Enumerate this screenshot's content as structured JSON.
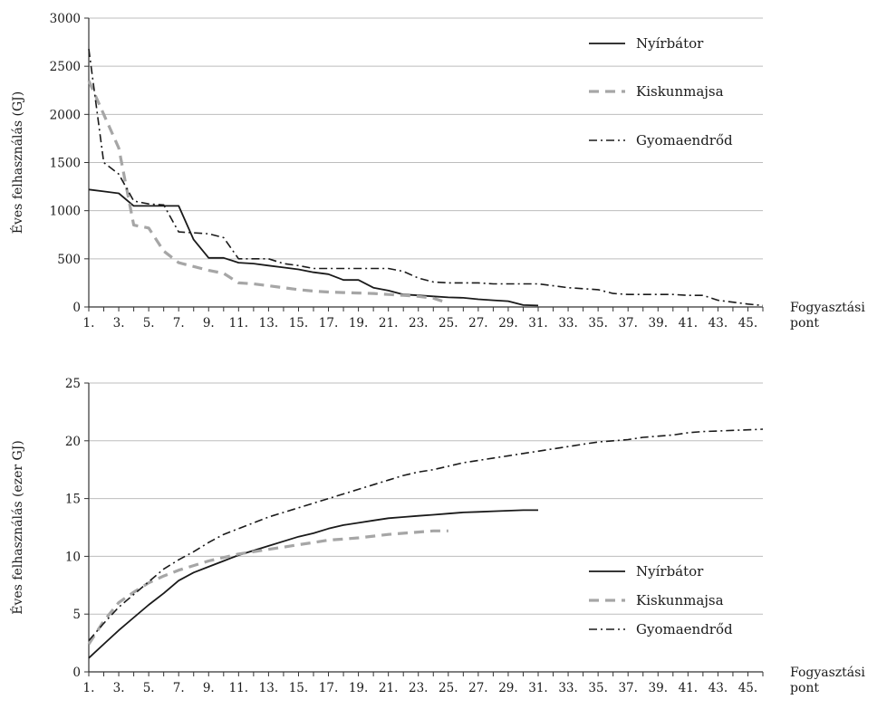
{
  "chart_data": [
    {
      "type": "line",
      "xlabel": [
        "Fogyasztási",
        "pont"
      ],
      "ylabel": "Éves felhasználás (GJ)",
      "ylim": [
        0,
        3000
      ],
      "yticks": [
        0,
        500,
        1000,
        1500,
        2000,
        2500,
        3000
      ],
      "xlim": [
        1,
        46
      ],
      "xticks": [
        "1.",
        "3.",
        "5.",
        "7.",
        "9.",
        "11.",
        "13.",
        "15.",
        "17.",
        "19.",
        "21.",
        "23.",
        "25.",
        "27.",
        "29.",
        "31.",
        "33.",
        "35.",
        "37.",
        "39.",
        "41.",
        "43.",
        "45."
      ],
      "grid": "horizontal",
      "legend": "top-right",
      "series": [
        {
          "name": "Nyírbátor",
          "style": "solid",
          "color": "#1a1a1a",
          "x": [
            1,
            2,
            3,
            4,
            5,
            6,
            7,
            8,
            9,
            10,
            11,
            12,
            13,
            14,
            15,
            16,
            17,
            18,
            19,
            20,
            21,
            22,
            23,
            24,
            25,
            26,
            27,
            28,
            29,
            30,
            31
          ],
          "values": [
            1220,
            1200,
            1180,
            1050,
            1050,
            1050,
            1050,
            700,
            510,
            510,
            460,
            450,
            430,
            410,
            390,
            360,
            340,
            280,
            280,
            200,
            170,
            130,
            120,
            110,
            100,
            95,
            80,
            70,
            60,
            20,
            15
          ]
        },
        {
          "name": "Kiskunmajsa",
          "style": "dashed",
          "color": "#a6a6a6",
          "x": [
            1,
            2,
            3,
            4,
            5,
            6,
            7,
            8,
            9,
            10,
            11,
            12,
            13,
            14,
            15,
            16,
            17,
            18,
            19,
            20,
            21,
            22,
            23,
            24,
            25
          ],
          "values": [
            2350,
            2000,
            1650,
            850,
            820,
            580,
            460,
            420,
            380,
            350,
            250,
            240,
            220,
            200,
            180,
            165,
            155,
            150,
            145,
            140,
            130,
            120,
            110,
            90,
            40
          ]
        },
        {
          "name": "Gyomaendrőd",
          "style": "dashdot",
          "color": "#1a1a1a",
          "x": [
            1,
            2,
            3,
            4,
            5,
            6,
            7,
            8,
            9,
            10,
            11,
            12,
            13,
            14,
            15,
            16,
            17,
            18,
            19,
            20,
            21,
            22,
            23,
            24,
            25,
            26,
            27,
            28,
            29,
            30,
            31,
            32,
            33,
            34,
            35,
            36,
            37,
            38,
            39,
            40,
            41,
            42,
            43,
            44,
            45,
            46
          ],
          "values": [
            2680,
            1500,
            1380,
            1100,
            1070,
            1060,
            780,
            770,
            760,
            720,
            500,
            500,
            500,
            450,
            430,
            400,
            400,
            400,
            400,
            400,
            400,
            370,
            300,
            260,
            250,
            250,
            250,
            240,
            240,
            240,
            240,
            220,
            200,
            190,
            180,
            140,
            130,
            130,
            130,
            130,
            120,
            120,
            70,
            50,
            30,
            15
          ]
        }
      ]
    },
    {
      "type": "line",
      "xlabel": [
        "Fogyasztási",
        "pont"
      ],
      "ylabel": "Éves felhasználás (ezer GJ)",
      "ylim": [
        0,
        25
      ],
      "yticks": [
        0,
        5,
        10,
        15,
        20,
        25
      ],
      "xlim": [
        1,
        46
      ],
      "xticks": [
        "1.",
        "3.",
        "5.",
        "7.",
        "9.",
        "11.",
        "13.",
        "15.",
        "17.",
        "19.",
        "21.",
        "23.",
        "25.",
        "27.",
        "29.",
        "31.",
        "33.",
        "35.",
        "37.",
        "39.",
        "41.",
        "43.",
        "45."
      ],
      "grid": "horizontal",
      "legend": "bottom-right",
      "series": [
        {
          "name": "Nyírbátor",
          "style": "solid",
          "color": "#1a1a1a",
          "x": [
            1,
            2,
            3,
            4,
            5,
            6,
            7,
            8,
            9,
            10,
            11,
            12,
            13,
            14,
            15,
            16,
            17,
            18,
            19,
            20,
            21,
            22,
            23,
            24,
            25,
            26,
            27,
            28,
            29,
            30,
            31
          ],
          "values": [
            1.2,
            2.4,
            3.6,
            4.7,
            5.8,
            6.8,
            7.9,
            8.6,
            9.1,
            9.6,
            10.1,
            10.5,
            10.9,
            11.3,
            11.7,
            12.0,
            12.4,
            12.7,
            12.9,
            13.1,
            13.3,
            13.4,
            13.5,
            13.6,
            13.7,
            13.8,
            13.85,
            13.9,
            13.95,
            14.0,
            14.0
          ]
        },
        {
          "name": "Kiskunmajsa",
          "style": "dashed",
          "color": "#a6a6a6",
          "x": [
            1,
            2,
            3,
            4,
            5,
            6,
            7,
            8,
            9,
            10,
            11,
            12,
            13,
            14,
            15,
            16,
            17,
            18,
            19,
            20,
            21,
            22,
            23,
            24,
            25
          ],
          "values": [
            2.4,
            4.4,
            6.0,
            6.9,
            7.7,
            8.3,
            8.8,
            9.2,
            9.6,
            9.9,
            10.2,
            10.4,
            10.6,
            10.8,
            11.0,
            11.2,
            11.4,
            11.5,
            11.6,
            11.75,
            11.9,
            12.0,
            12.1,
            12.2,
            12.2
          ]
        },
        {
          "name": "Gyomaendrőd",
          "style": "dashdot",
          "color": "#1a1a1a",
          "x": [
            1,
            2,
            3,
            4,
            5,
            6,
            7,
            8,
            9,
            10,
            11,
            12,
            13,
            14,
            15,
            16,
            17,
            18,
            19,
            20,
            21,
            22,
            23,
            24,
            25,
            26,
            27,
            28,
            29,
            30,
            31,
            32,
            33,
            34,
            35,
            36,
            37,
            38,
            39,
            40,
            41,
            42,
            43,
            44,
            45,
            46
          ],
          "values": [
            2.7,
            4.2,
            5.6,
            6.7,
            7.8,
            8.9,
            9.7,
            10.4,
            11.2,
            11.9,
            12.4,
            12.9,
            13.4,
            13.8,
            14.2,
            14.6,
            15.0,
            15.4,
            15.8,
            16.2,
            16.6,
            17.0,
            17.3,
            17.5,
            17.8,
            18.1,
            18.3,
            18.5,
            18.7,
            18.9,
            19.1,
            19.3,
            19.5,
            19.7,
            19.9,
            20.0,
            20.1,
            20.3,
            20.4,
            20.5,
            20.7,
            20.8,
            20.85,
            20.9,
            20.95,
            21.0
          ]
        }
      ]
    }
  ]
}
